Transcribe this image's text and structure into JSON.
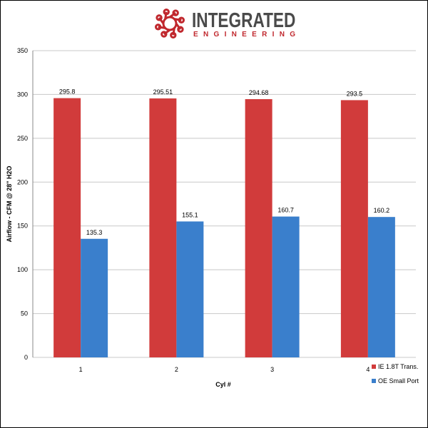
{
  "logo": {
    "title": "INTEGRATED",
    "subtitle": "ENGINEERING"
  },
  "colors": {
    "series1": "#d13b3b",
    "series2": "#3a7fcc",
    "grid": "#c8c8c8"
  },
  "chart_data": {
    "type": "bar",
    "title": "",
    "xlabel": "Cyl #",
    "ylabel": "Airflow - CFM @ 28\" H2O",
    "categories": [
      "1",
      "2",
      "3",
      "4"
    ],
    "series": [
      {
        "name": "IE 1.8T Trans.",
        "values": [
          295.8,
          295.51,
          294.68,
          293.5
        ],
        "labels": [
          "295.8",
          "295.51",
          "294.68",
          "293.5"
        ]
      },
      {
        "name": "OE Small Port",
        "values": [
          135.3,
          155.1,
          160.7,
          160.2
        ],
        "labels": [
          "135.3",
          "155.1",
          "160.7",
          "160.2"
        ]
      }
    ],
    "ylim": [
      0,
      350
    ],
    "yticks": [
      0,
      50,
      100,
      150,
      200,
      250,
      300,
      350
    ],
    "grid": true,
    "legend": "bottom-right"
  }
}
